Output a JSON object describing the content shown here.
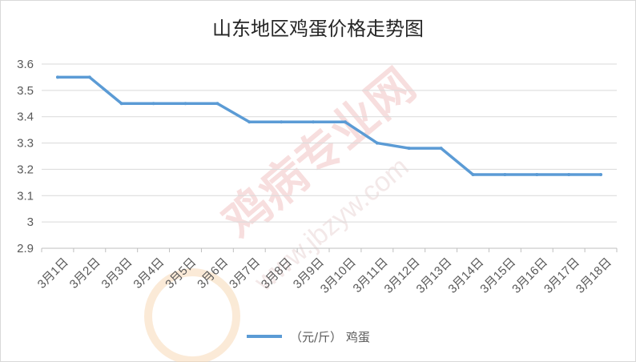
{
  "chart_data": {
    "type": "line",
    "title": "山东地区鸡蛋价格走势图",
    "categories": [
      "3月1日",
      "3月2日",
      "3月3日",
      "3月4日",
      "3月5日",
      "3月6日",
      "3月7日",
      "3月8日",
      "3月9日",
      "3月10日",
      "3月11日",
      "3月12日",
      "3月13日",
      "3月14日",
      "3月15日",
      "3月16日",
      "3月17日",
      "3月18日"
    ],
    "series": [
      {
        "name": "（元/斤） 鸡蛋",
        "values": [
          3.55,
          3.55,
          3.45,
          3.45,
          3.45,
          3.45,
          3.38,
          3.38,
          3.38,
          3.38,
          3.3,
          3.28,
          3.28,
          3.18,
          3.18,
          3.18,
          3.18,
          3.18
        ]
      }
    ],
    "ylim": [
      2.9,
      3.6
    ],
    "yticks": [
      "2.9",
      "3",
      "3.1",
      "3.2",
      "3.3",
      "3.4",
      "3.5",
      "3.6"
    ],
    "xlabel": "",
    "ylabel": "",
    "grid": "horizontal",
    "legend": "bottom",
    "line_color": "#5b9bd5"
  },
  "watermark": {
    "text_cn": "鸡病专业网",
    "text_url": "www.jbzyw.com"
  }
}
